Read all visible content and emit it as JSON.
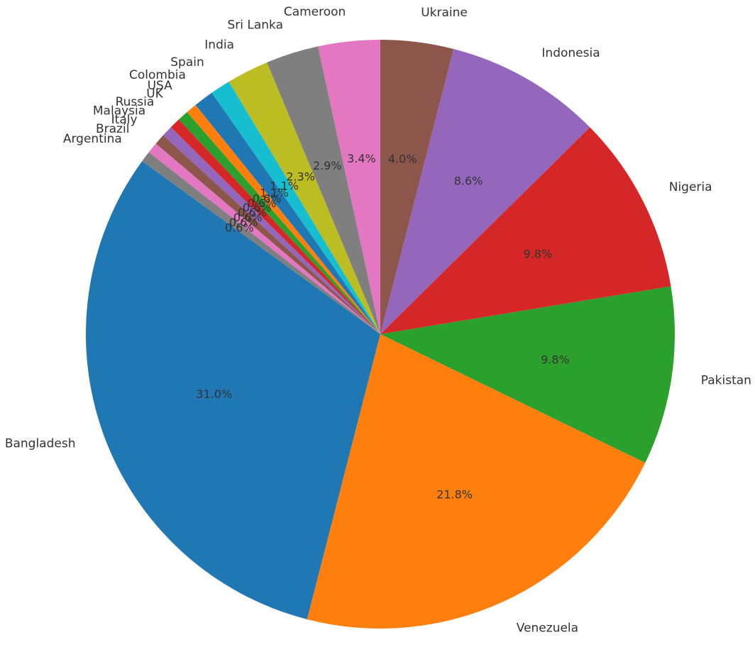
{
  "chart_data": {
    "type": "pie",
    "title": "",
    "categories": [
      "Bangladesh",
      "Venezuela",
      "Pakistan",
      "Nigeria",
      "Indonesia",
      "Ukraine",
      "Cameroon",
      "Sri Lanka",
      "India",
      "Spain",
      "Colombia",
      "USA",
      "UK",
      "Russia",
      "Malaysia",
      "Italy",
      "Brazil",
      "Argentina"
    ],
    "values": [
      31.0,
      21.8,
      9.8,
      9.8,
      8.6,
      4.0,
      3.4,
      2.9,
      2.3,
      1.1,
      1.1,
      0.6,
      0.6,
      0.6,
      0.6,
      0.6,
      0.6,
      0.6
    ],
    "labels": [
      "31.0%",
      "21.8%",
      "9.8%",
      "9.8%",
      "8.6%",
      "4.0%",
      "3.4%",
      "2.9%",
      "2.3%",
      "1.1%",
      "1.1%",
      "0.6%",
      "0.6%",
      "0.6%",
      "0.6%",
      "0.6%",
      "0.6%",
      "0.6%"
    ],
    "colors": [
      "#1f77b4",
      "#ff7f0e",
      "#2ca02c",
      "#d62728",
      "#9467bd",
      "#8c564b",
      "#e377c2",
      "#7f7f7f",
      "#bcbd22",
      "#17becf",
      "#1f77b4",
      "#ff7f0e",
      "#2ca02c",
      "#d62728",
      "#9467bd",
      "#8c564b",
      "#e377c2",
      "#7f7f7f"
    ],
    "start_angle_deg": 144,
    "direction": "counterclockwise",
    "legend": "none"
  }
}
